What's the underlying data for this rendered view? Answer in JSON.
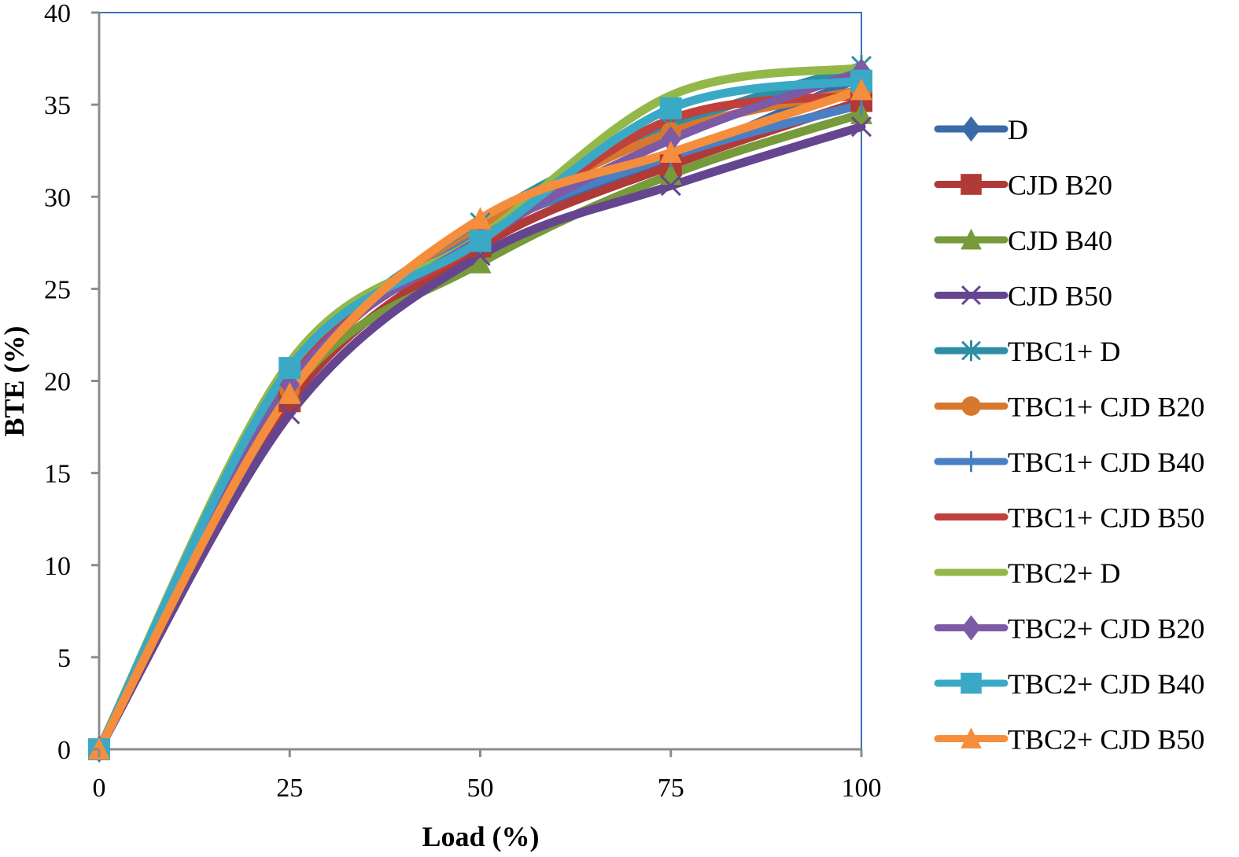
{
  "chart_data": {
    "type": "line",
    "title": "",
    "xlabel": "Load (%)",
    "ylabel": "BTE (%)",
    "x": [
      0,
      25,
      50,
      75,
      100
    ],
    "x_ticks": [
      "0",
      "25",
      "50",
      "75",
      "100"
    ],
    "y_ticks": [
      "0",
      "5",
      "10",
      "15",
      "20",
      "25",
      "30",
      "35",
      "40"
    ],
    "xlim": [
      0,
      100
    ],
    "ylim": [
      0,
      40
    ],
    "grid": false,
    "smooth": true,
    "legend_position": "right",
    "series": [
      {
        "name": "D",
        "color": "#3b6aa8",
        "marker": "diamond",
        "values": [
          0,
          19.6,
          28.0,
          32.0,
          36.5
        ]
      },
      {
        "name": "CJD B20",
        "color": "#b03a38",
        "marker": "square",
        "values": [
          0,
          18.9,
          27.3,
          31.7,
          35.2
        ]
      },
      {
        "name": "CJD B40",
        "color": "#779a3a",
        "marker": "triangle",
        "values": [
          0,
          19.4,
          26.4,
          31.2,
          34.5
        ]
      },
      {
        "name": "CJD B50",
        "color": "#65458f",
        "marker": "x",
        "values": [
          0,
          18.2,
          26.8,
          30.6,
          33.8
        ]
      },
      {
        "name": "TBC1+ D",
        "color": "#2e8ea6",
        "marker": "star",
        "values": [
          0,
          19.9,
          28.6,
          33.8,
          37.1
        ]
      },
      {
        "name": "TBC1+ CJD B20",
        "color": "#d8782e",
        "marker": "circle",
        "values": [
          0,
          19.5,
          28.2,
          33.5,
          35.8
        ]
      },
      {
        "name": "TBC1+ CJD B40",
        "color": "#4a7fc4",
        "marker": "plus",
        "values": [
          0,
          19.7,
          27.9,
          32.2,
          35.0
        ]
      },
      {
        "name": "TBC1+ CJD B50",
        "color": "#c0403c",
        "marker": "none",
        "values": [
          0,
          20.2,
          27.5,
          34.2,
          35.5
        ]
      },
      {
        "name": "TBC2+ D",
        "color": "#93b84a",
        "marker": "none",
        "values": [
          0,
          21.0,
          27.8,
          35.5,
          37.0
        ]
      },
      {
        "name": "TBC2+ CJD B20",
        "color": "#7d5aa6",
        "marker": "diamond",
        "values": [
          0,
          19.8,
          27.7,
          33.1,
          36.8
        ]
      },
      {
        "name": "TBC2+ CJD B40",
        "color": "#3aa9c6",
        "marker": "square",
        "values": [
          0,
          20.7,
          27.6,
          34.8,
          36.3
        ]
      },
      {
        "name": "TBC2+ CJD B50",
        "color": "#f48e3c",
        "marker": "triangle",
        "values": [
          0,
          19.3,
          28.8,
          32.4,
          35.8
        ]
      }
    ]
  },
  "colors": {
    "axis": "#8c8c8c",
    "plot_border": "#3a70c0"
  }
}
